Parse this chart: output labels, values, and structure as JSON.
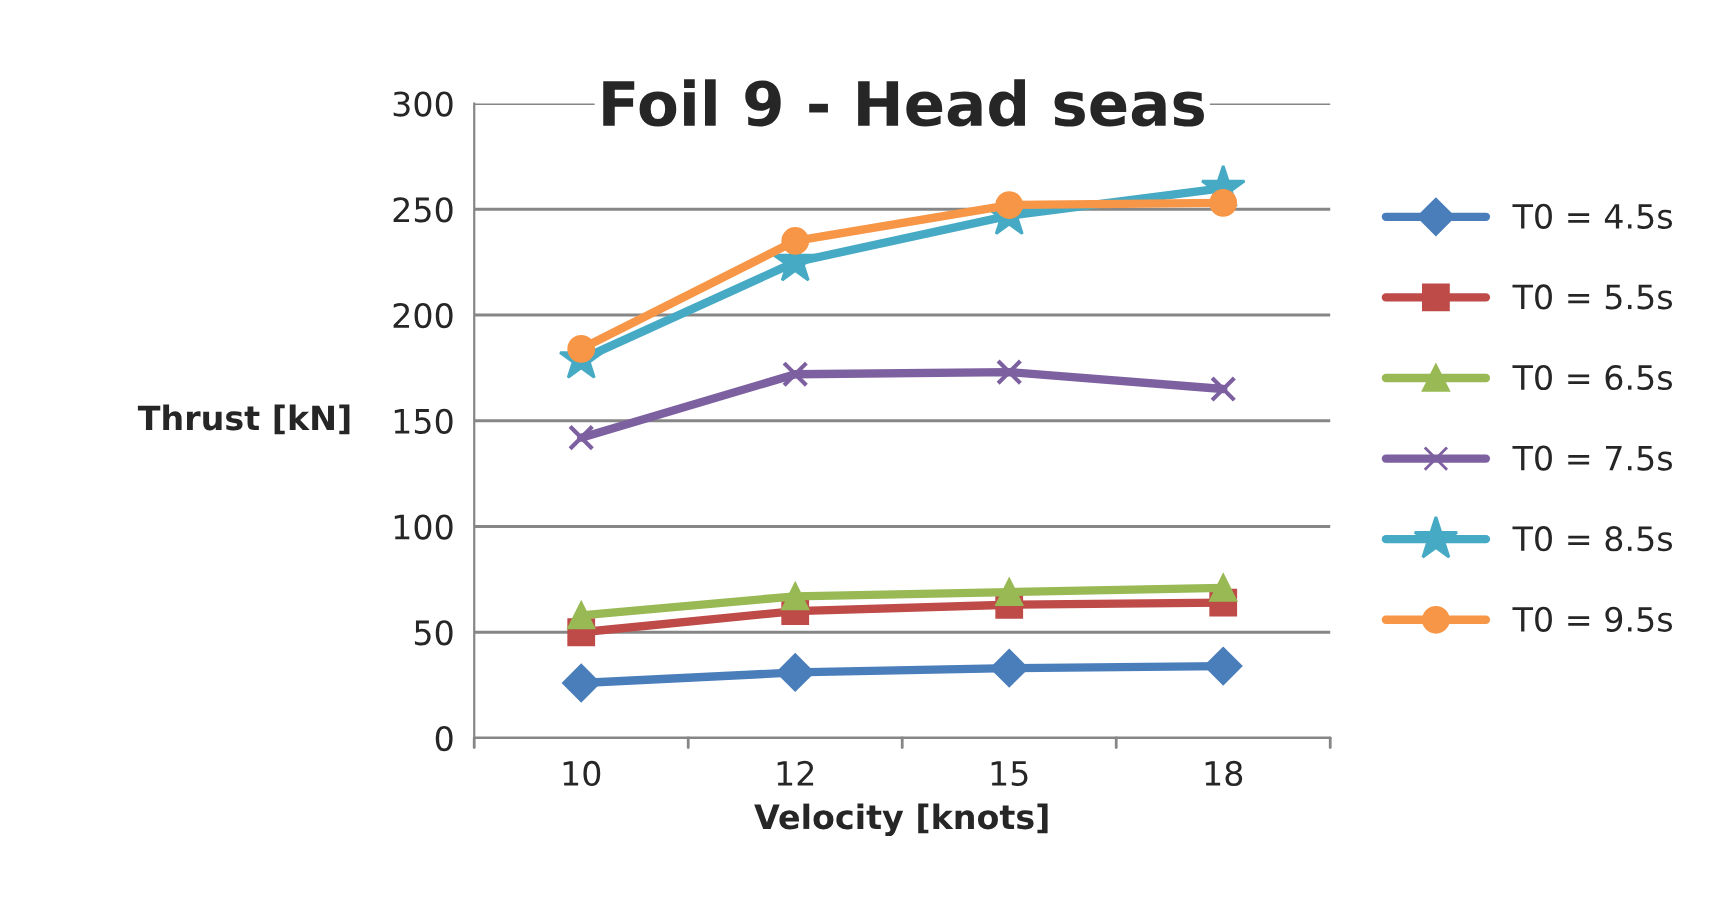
{
  "chart_data": {
    "type": "line",
    "title": "Foil 9 - Head seas",
    "xlabel": "Velocity [knots]",
    "ylabel": "Thrust [kN]",
    "categories": [
      "10",
      "12",
      "15",
      "18"
    ],
    "ylim": [
      0,
      300
    ],
    "yticks": [
      0,
      50,
      100,
      150,
      200,
      250,
      300
    ],
    "grid": "y",
    "legend": "right",
    "series": [
      {
        "name": "T0 = 4.5s",
        "color": "#4a7ebb",
        "marker": "diamond",
        "values": [
          26,
          31,
          33,
          34
        ]
      },
      {
        "name": "T0 = 5.5s",
        "color": "#be4b48",
        "marker": "square",
        "values": [
          50,
          60,
          63,
          64
        ]
      },
      {
        "name": "T0 = 6.5s",
        "color": "#98b954",
        "marker": "triangle",
        "values": [
          58,
          67,
          69,
          71
        ]
      },
      {
        "name": "T0 = 7.5s",
        "color": "#7d60a0",
        "marker": "cross",
        "values": [
          142,
          172,
          173,
          165
        ]
      },
      {
        "name": "T0 = 8.5s",
        "color": "#46aac5",
        "marker": "star",
        "values": [
          179,
          225,
          247,
          260
        ]
      },
      {
        "name": "T0 = 9.5s",
        "color": "#f79646",
        "marker": "circle",
        "values": [
          184,
          235,
          252,
          253
        ]
      }
    ]
  }
}
